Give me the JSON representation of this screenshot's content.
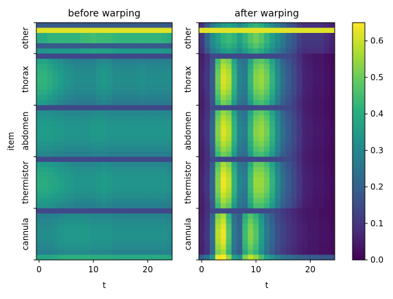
{
  "chart_data": [
    {
      "type": "heatmap",
      "title": "before warping",
      "xlabel": "t",
      "ylabel": "item",
      "x_ticks": [
        0,
        10,
        20
      ],
      "x_range": [
        -0.5,
        24.5
      ],
      "y_categories": [
        "other",
        "thorax",
        "abdomen",
        "thermistor",
        "cannula"
      ],
      "row_blocks": [
        {
          "label": "other",
          "rows": 6,
          "profile": [
            0.38,
            0.38,
            0.4,
            0.4,
            0.4,
            0.4,
            0.4,
            0.4,
            0.42,
            0.42,
            0.43,
            0.42,
            0.42,
            0.42,
            0.41,
            0.4,
            0.4,
            0.4,
            0.4,
            0.4,
            0.4,
            0.4,
            0.4,
            0.39,
            0.38
          ],
          "peak_row": 1,
          "peak_value": 0.62,
          "low_rows": [
            0,
            4
          ],
          "low_value": 0.18
        },
        {
          "label": "thorax",
          "rows": 10,
          "profile": [
            0.4,
            0.4,
            0.38,
            0.36,
            0.34,
            0.32,
            0.31,
            0.3,
            0.3,
            0.3,
            0.3,
            0.32,
            0.33,
            0.32,
            0.3,
            0.3,
            0.3,
            0.3,
            0.3,
            0.31,
            0.3,
            0.3,
            0.3,
            0.3,
            0.3
          ]
        },
        {
          "label": "abdomen",
          "rows": 10,
          "profile": [
            0.34,
            0.34,
            0.34,
            0.33,
            0.33,
            0.32,
            0.32,
            0.32,
            0.32,
            0.32,
            0.33,
            0.33,
            0.33,
            0.32,
            0.32,
            0.32,
            0.32,
            0.32,
            0.32,
            0.32,
            0.32,
            0.32,
            0.32,
            0.32,
            0.32
          ]
        },
        {
          "label": "thermistor",
          "rows": 10,
          "profile": [
            0.38,
            0.38,
            0.37,
            0.36,
            0.35,
            0.34,
            0.33,
            0.32,
            0.32,
            0.32,
            0.32,
            0.33,
            0.34,
            0.33,
            0.32,
            0.32,
            0.32,
            0.32,
            0.32,
            0.32,
            0.32,
            0.32,
            0.32,
            0.32,
            0.31
          ]
        },
        {
          "label": "cannula",
          "rows": 10,
          "profile": [
            0.3,
            0.3,
            0.3,
            0.31,
            0.32,
            0.33,
            0.33,
            0.33,
            0.33,
            0.33,
            0.32,
            0.32,
            0.32,
            0.32,
            0.31,
            0.31,
            0.31,
            0.31,
            0.31,
            0.31,
            0.31,
            0.31,
            0.31,
            0.31,
            0.3
          ],
          "bottom_row_boost": 0.12
        }
      ]
    },
    {
      "type": "heatmap",
      "title": "after warping",
      "xlabel": "t",
      "ylabel": "",
      "x_ticks": [
        0,
        10,
        20
      ],
      "x_range": [
        -0.5,
        24.5
      ],
      "y_categories": [
        "other",
        "thorax",
        "abdomen",
        "thermistor",
        "cannula"
      ],
      "row_blocks": [
        {
          "label": "other",
          "rows": 6,
          "profile": [
            0.1,
            0.2,
            0.3,
            0.35,
            0.4,
            0.42,
            0.4,
            0.35,
            0.4,
            0.45,
            0.48,
            0.45,
            0.4,
            0.35,
            0.3,
            0.25,
            0.2,
            0.17,
            0.12,
            0.1,
            0.1,
            0.1,
            0.1,
            0.08,
            0.06
          ],
          "peak_row": 1,
          "peak_value": 0.62
        },
        {
          "label": "thorax",
          "rows": 10,
          "profile": [
            0.06,
            0.1,
            0.18,
            0.48,
            0.58,
            0.55,
            0.4,
            0.28,
            0.26,
            0.4,
            0.5,
            0.52,
            0.48,
            0.4,
            0.3,
            0.22,
            0.18,
            0.14,
            0.1,
            0.06,
            0.05,
            0.04,
            0.04,
            0.03,
            0.02
          ]
        },
        {
          "label": "abdomen",
          "rows": 10,
          "profile": [
            0.06,
            0.1,
            0.2,
            0.5,
            0.58,
            0.55,
            0.4,
            0.28,
            0.26,
            0.4,
            0.5,
            0.52,
            0.48,
            0.4,
            0.3,
            0.22,
            0.18,
            0.14,
            0.1,
            0.06,
            0.05,
            0.04,
            0.04,
            0.03,
            0.02
          ]
        },
        {
          "label": "thermistor",
          "rows": 10,
          "profile": [
            0.06,
            0.1,
            0.2,
            0.5,
            0.6,
            0.56,
            0.4,
            0.28,
            0.26,
            0.42,
            0.52,
            0.52,
            0.48,
            0.4,
            0.3,
            0.22,
            0.18,
            0.14,
            0.1,
            0.06,
            0.05,
            0.04,
            0.04,
            0.03,
            0.02
          ]
        },
        {
          "label": "cannula",
          "rows": 10,
          "profile": [
            0.06,
            0.1,
            0.22,
            0.55,
            0.6,
            0.45,
            0.25,
            0.2,
            0.42,
            0.5,
            0.45,
            0.35,
            0.25,
            0.2,
            0.15,
            0.12,
            0.1,
            0.08,
            0.06,
            0.05,
            0.04,
            0.04,
            0.03,
            0.03,
            0.02
          ],
          "bottom_row_boost": 0.15
        }
      ]
    }
  ],
  "colorbar": {
    "colormap": "viridis",
    "vmin": 0.0,
    "vmax": 0.65,
    "ticks": [
      0.0,
      0.1,
      0.2,
      0.3,
      0.4,
      0.5,
      0.6
    ],
    "tick_labels": [
      "0.0",
      "0.1",
      "0.2",
      "0.3",
      "0.4",
      "0.5",
      "0.6"
    ]
  }
}
